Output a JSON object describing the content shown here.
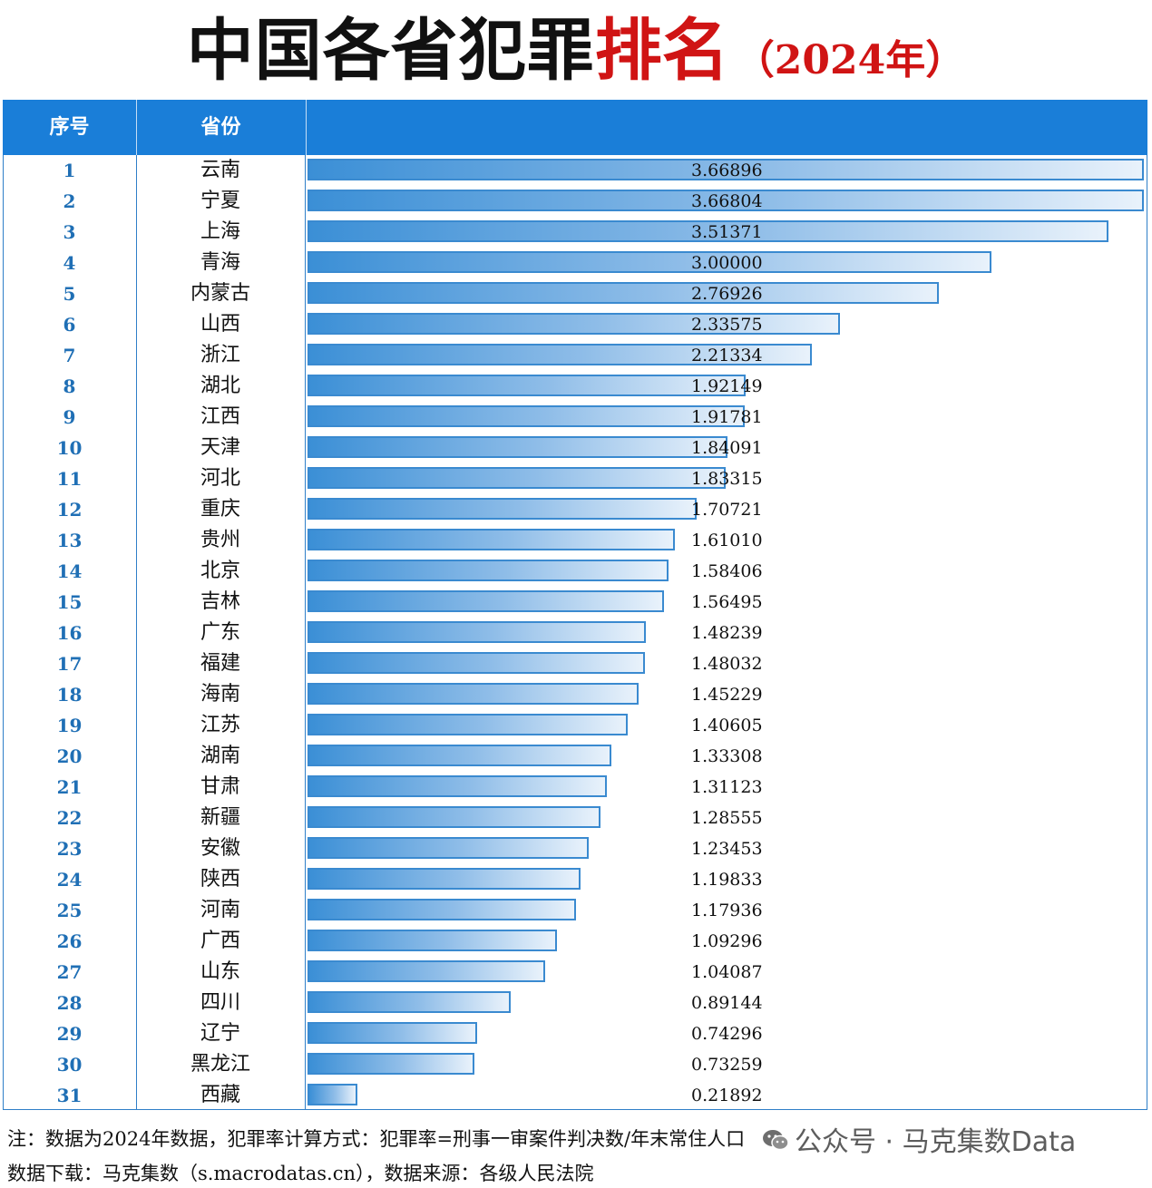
{
  "title": {
    "main": "中国各省犯罪",
    "highlight": "排名",
    "year": "（2024年）"
  },
  "table": {
    "headers": {
      "rank": "序号",
      "province": "省份",
      "value": ""
    }
  },
  "chart_data": {
    "type": "bar",
    "orientation": "horizontal",
    "xlim": [
      0,
      3.66896
    ],
    "ranks": [
      1,
      2,
      3,
      4,
      5,
      6,
      7,
      8,
      9,
      10,
      11,
      12,
      13,
      14,
      15,
      16,
      17,
      18,
      19,
      20,
      21,
      22,
      23,
      24,
      25,
      26,
      27,
      28,
      29,
      30,
      31
    ],
    "categories": [
      "云南",
      "宁夏",
      "上海",
      "青海",
      "内蒙古",
      "山西",
      "浙江",
      "湖北",
      "江西",
      "天津",
      "河北",
      "重庆",
      "贵州",
      "北京",
      "吉林",
      "广东",
      "福建",
      "海南",
      "江苏",
      "湖南",
      "甘肃",
      "新疆",
      "安徽",
      "陕西",
      "河南",
      "广西",
      "山东",
      "四川",
      "辽宁",
      "黑龙江",
      "西藏"
    ],
    "values": [
      3.66896,
      3.66804,
      3.51371,
      3.0,
      2.76926,
      2.33575,
      2.21334,
      1.92149,
      1.91781,
      1.84091,
      1.83315,
      1.70721,
      1.6101,
      1.58406,
      1.56495,
      1.48239,
      1.48032,
      1.45229,
      1.40605,
      1.33308,
      1.31123,
      1.28555,
      1.23453,
      1.19833,
      1.17936,
      1.09296,
      1.04087,
      0.89144,
      0.74296,
      0.73259,
      0.21892
    ],
    "value_labels": [
      "3.66896",
      "3.66804",
      "3.51371",
      "3.00000",
      "2.76926",
      "2.33575",
      "2.21334",
      "1.92149",
      "1.91781",
      "1.84091",
      "1.83315",
      "1.70721",
      "1.61010",
      "1.58406",
      "1.56495",
      "1.48239",
      "1.48032",
      "1.45229",
      "1.40605",
      "1.33308",
      "1.31123",
      "1.28555",
      "1.23453",
      "1.19833",
      "1.17936",
      "1.09296",
      "1.04087",
      "0.89144",
      "0.74296",
      "0.73259",
      "0.21892"
    ],
    "bar_color": "#3b8fd6"
  },
  "notes": {
    "line1": "注：数据为2024年数据，犯罪率计算方式：犯罪率=刑事一审案件判决数/年末常住人口",
    "line2": "数据下载：马克集数（s.macrodatas.cn），数据来源：各级人民法院"
  },
  "watermark": {
    "icon": "wechat-icon",
    "text": "公众号 · 马克集数Data"
  },
  "colors": {
    "header_bg": "#1a7ed8",
    "title_highlight": "#d01414",
    "rank_text": "#1f6fb5"
  }
}
